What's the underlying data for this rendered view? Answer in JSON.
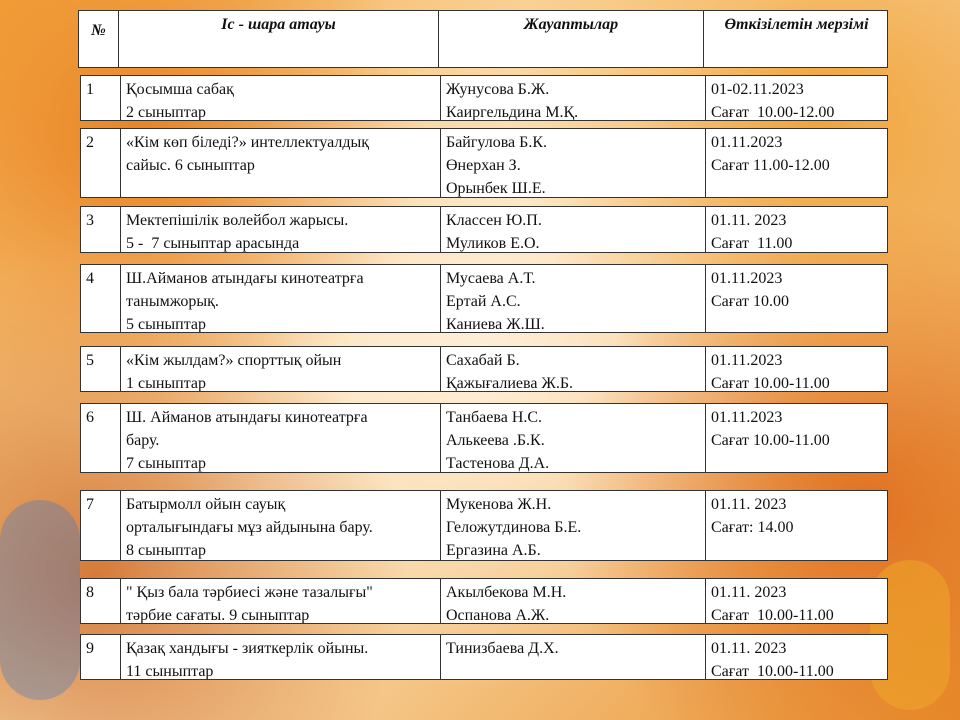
{
  "header": [
    "№",
    "Іс - шара атауы",
    "Жауаптылар",
    "Өткізілетін мерзімі"
  ],
  "rows": [
    {
      "number": "1",
      "event": [
        "Қосымша сабақ",
        "2 сыныптар"
      ],
      "responsible": [
        "Жунусова Б.Ж.",
        "Каиргельдина М.Қ."
      ],
      "date": [
        "01-02.11.2023",
        "Сағат  10.00-12.00"
      ]
    },
    {
      "number": "2",
      "event": [
        "«Кім көп біледі?» интеллектуалдық",
        "сайыс. 6 сыныптар"
      ],
      "responsible": [
        "Байгулова Б.К.",
        "Өнерхан З.",
        "Орынбек Ш.Е."
      ],
      "date": [
        "01.11.2023",
        "Сағат 11.00-12.00"
      ]
    },
    {
      "number": "3",
      "event": [
        "Мектепішілік волейбол жарысы.",
        "5 -  7 сыныптар арасында"
      ],
      "responsible": [
        "Классен Ю.П.",
        "Муликов Е.О."
      ],
      "date": [
        "01.11. 2023",
        "Сағат  11.00"
      ]
    },
    {
      "number": "4",
      "event": [
        "Ш.Айманов атындағы кинотеатрға",
        "танымжорық.",
        "5 сыныптар"
      ],
      "responsible": [
        "Мусаева А.Т.",
        "Ертай А.С.",
        "Каниева Ж.Ш."
      ],
      "date": [
        "01.11.2023",
        "Сағат 10.00"
      ]
    },
    {
      "number": "5",
      "event": [
        "«Кім жылдам?» спорттық ойын",
        "1 сыныптар"
      ],
      "responsible": [
        "Сахабай Б.",
        "Қажығалиева Ж.Б."
      ],
      "date": [
        "01.11.2023",
        "Сағат 10.00-11.00"
      ]
    },
    {
      "number": "6",
      "event": [
        "Ш. Айманов атындағы кинотеатрға",
        "бару.",
        "7 сыныптар"
      ],
      "responsible": [
        "Танбаева Н.С.",
        "Алькеева .Б.К.",
        "Тастенова Д.А."
      ],
      "date": [
        "01.11.2023",
        "Сағат 10.00-11.00"
      ]
    },
    {
      "number": "7",
      "event": [
        "Батырмолл ойын сауық",
        "орталығындағы мұз айдынына бару.",
        "8 сыныптар"
      ],
      "responsible": [
        "Мукенова Ж.Н.",
        "Геложутдинова Б.Е.",
        "Ергазина А.Б."
      ],
      "date": [
        "01.11. 2023",
        "Сағат: 14.00"
      ]
    },
    {
      "number": "8",
      "event": [
        "\" Қыз бала тәрбиесі және тазалығы\"",
        "тәрбие сағаты. 9 сыныптар"
      ],
      "responsible": [
        "Акылбекова М.Н.",
        "Оспанова А.Ж."
      ],
      "date": [
        "01.11. 2023",
        "Сағат  10.00-11.00"
      ]
    },
    {
      "number": "9",
      "event": [
        "Қазақ хандығы - зияткерлік ойыны.",
        "11 сыныптар"
      ],
      "responsible": [
        "Тинизбаева Д.Х."
      ],
      "date": [
        "01.11. 2023",
        "Сағат  10.00-11.00"
      ]
    }
  ]
}
